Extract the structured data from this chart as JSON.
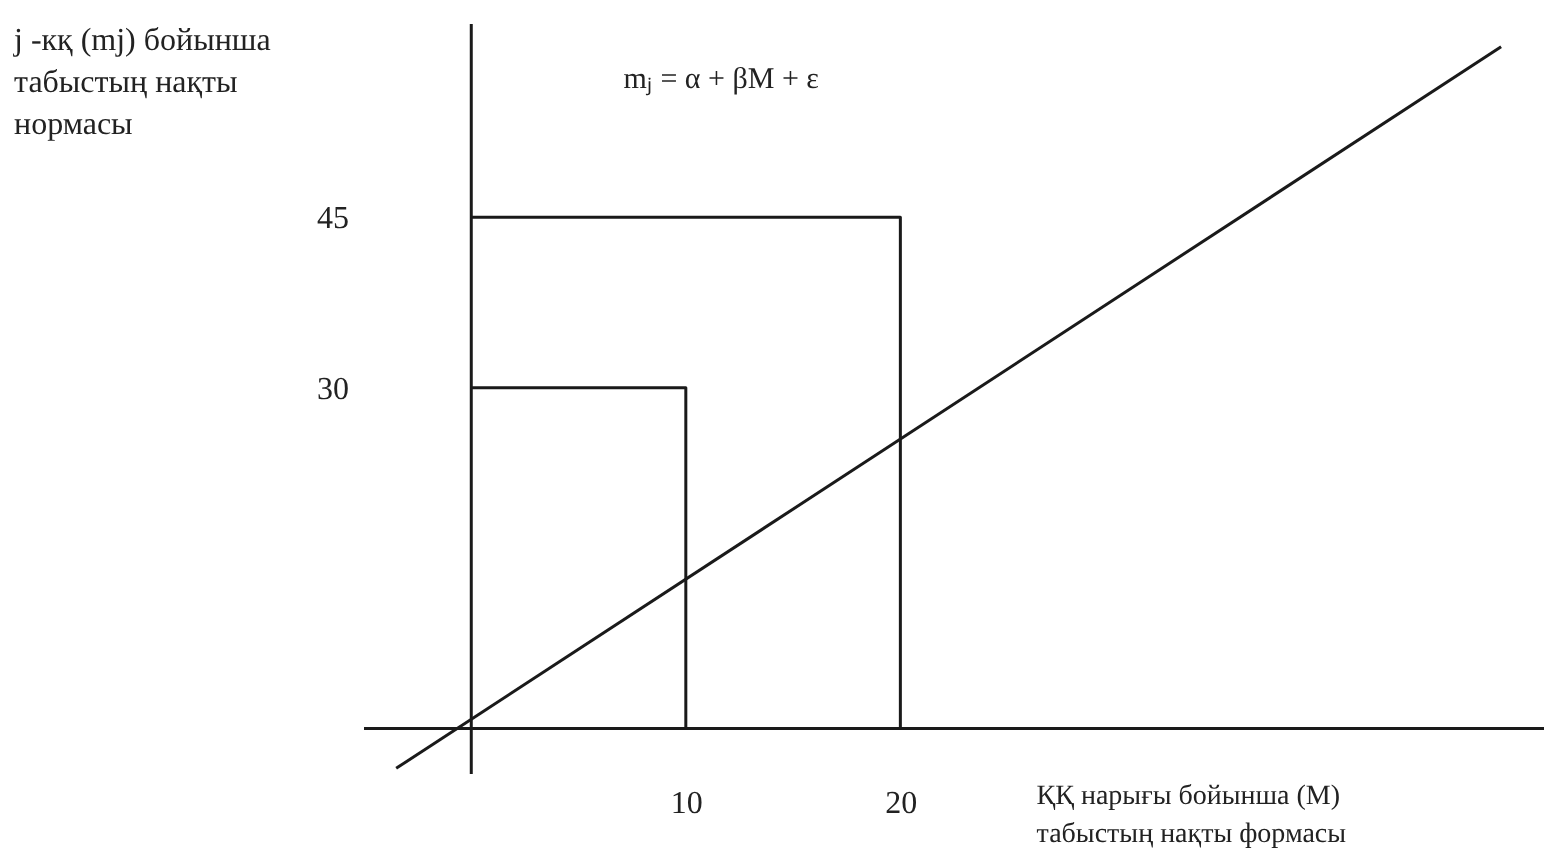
{
  "chart_data": {
    "type": "line",
    "xlabel": "ҚҚ нарығы бойынша (М) табыстың нақты формасы",
    "ylabel": "j -кқ (mj) бойынша табыстың нақты нормасы",
    "annotations": [
      "mⱼ = α + βM + ε"
    ],
    "xlim": [
      -5,
      50
    ],
    "ylim": [
      -4,
      62
    ],
    "xticks": [
      10,
      20
    ],
    "yticks": [
      30,
      45
    ],
    "series": [
      {
        "color": "#1a1a1a",
        "x": [
          -3.5,
          48
        ],
        "values": [
          -3.5,
          60
        ]
      },
      {
        "color": "#1a1a1a",
        "x": [
          0,
          10,
          10
        ],
        "values": [
          30,
          30,
          0
        ]
      },
      {
        "color": "#1a1a1a",
        "x": [
          0,
          20,
          20
        ],
        "values": [
          45,
          45,
          0
        ]
      }
    ]
  }
}
